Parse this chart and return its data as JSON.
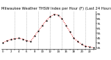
{
  "title": "Milwaukee Weather THSW Index per Hour (F) (Last 24 Hours)",
  "hours": [
    0,
    1,
    2,
    3,
    4,
    5,
    6,
    7,
    8,
    9,
    10,
    11,
    12,
    13,
    14,
    15,
    16,
    17,
    18,
    19,
    20,
    21,
    22,
    23
  ],
  "values": [
    36,
    40,
    42,
    44,
    45,
    43,
    40,
    38,
    50,
    60,
    72,
    82,
    90,
    95,
    93,
    85,
    72,
    58,
    45,
    38,
    32,
    28,
    27,
    25
  ],
  "line_color": "#dd0000",
  "marker_color": "#000000",
  "bg_color": "#ffffff",
  "grid_color": "#999999",
  "title_fontsize": 3.8,
  "ylim": [
    22,
    102
  ],
  "yticks": [
    25,
    35,
    45,
    55,
    65,
    75,
    85,
    95
  ],
  "ytick_labels": [
    "25",
    "35",
    "45",
    "55",
    "65",
    "75",
    "85",
    "95"
  ],
  "ylabel_fontsize": 3.2,
  "xlabel_fontsize": 2.8,
  "xtick_hours": [
    0,
    1,
    2,
    3,
    4,
    5,
    6,
    7,
    8,
    9,
    10,
    11,
    12,
    13,
    14,
    15,
    16,
    17,
    18,
    19,
    20,
    21,
    22,
    23
  ],
  "vgrid_hours": [
    3,
    6,
    9,
    12,
    15,
    18,
    21
  ]
}
